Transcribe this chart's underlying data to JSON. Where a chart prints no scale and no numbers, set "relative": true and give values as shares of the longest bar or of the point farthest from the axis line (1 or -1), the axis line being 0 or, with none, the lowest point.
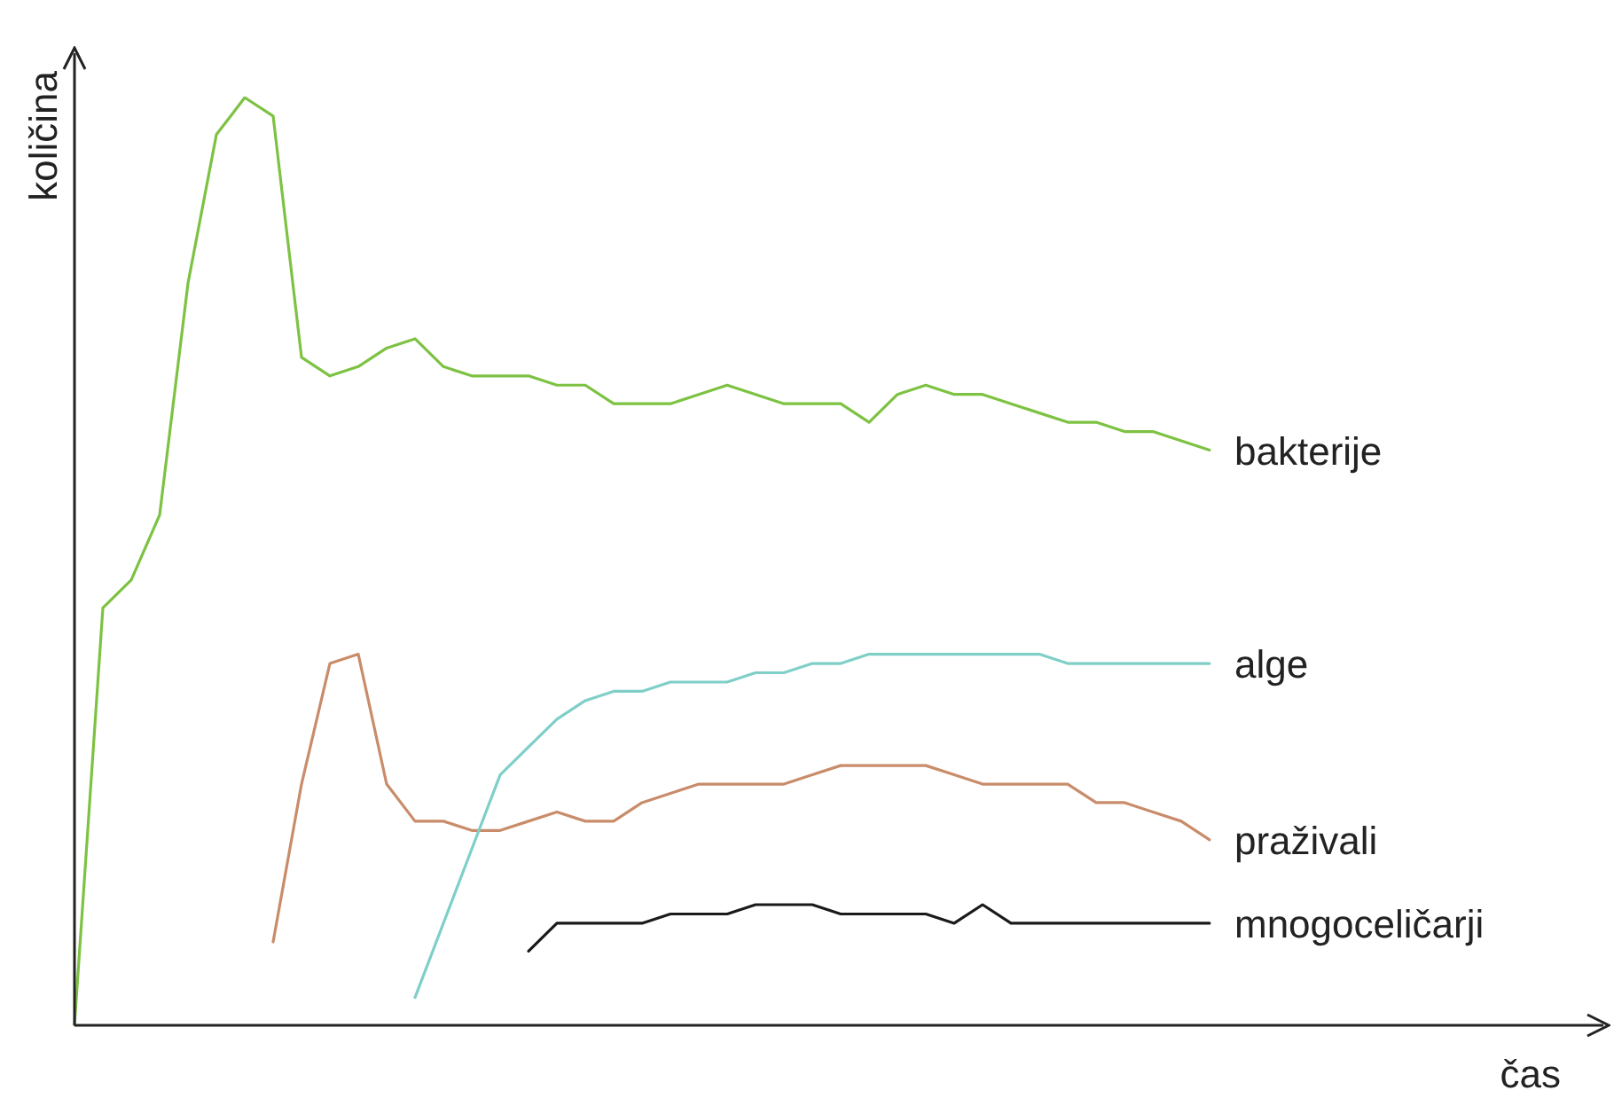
{
  "chart_data": {
    "type": "line",
    "relative": true,
    "annotations": [
      "čas"
    ],
    "ylabel": "količina",
    "legend": false,
    "grid": false,
    "marker": "none",
    "line_style": "solid",
    "categories": [
      null,
      null,
      null,
      null,
      null,
      null,
      null,
      null,
      null,
      null,
      null,
      null,
      null,
      null,
      null,
      null,
      null,
      null,
      null,
      null,
      null,
      null,
      null,
      null,
      null,
      null,
      null,
      null,
      null,
      null,
      null,
      null,
      null,
      null,
      null,
      null,
      null,
      null,
      null,
      null,
      null
    ],
    "series": [
      {
        "name": "bakterije",
        "color": "#7dc242",
        "values": [
          0,
          0.45,
          0.48,
          0.55,
          0.8,
          0.96,
          1,
          0.98,
          0.72,
          0.7,
          0.71,
          0.73,
          0.74,
          0.71,
          0.7,
          0.7,
          0.7,
          0.69,
          0.69,
          0.67,
          0.67,
          0.67,
          0.68,
          0.69,
          0.68,
          0.67,
          0.67,
          0.67,
          0.65,
          0.68,
          0.69,
          0.68,
          0.68,
          0.67,
          0.66,
          0.65,
          0.65,
          0.64,
          0.64,
          0.63,
          0.62
        ]
      },
      {
        "name": "alge",
        "color": "#7fcfc8",
        "values": [
          null,
          null,
          null,
          null,
          null,
          null,
          null,
          null,
          null,
          null,
          null,
          null,
          0.03,
          0.11,
          0.19,
          0.27,
          0.3,
          0.33,
          0.35,
          0.36,
          0.36,
          0.37,
          0.37,
          0.37,
          0.38,
          0.38,
          0.39,
          0.39,
          0.4,
          0.4,
          0.4,
          0.4,
          0.4,
          0.4,
          0.4,
          0.39,
          0.39,
          0.39,
          0.39,
          0.39,
          0.39
        ]
      },
      {
        "name": "praživali",
        "color": "#c98c6a",
        "values": [
          null,
          null,
          null,
          null,
          null,
          null,
          null,
          0.09,
          0.26,
          0.39,
          0.4,
          0.26,
          0.22,
          0.22,
          0.21,
          0.21,
          0.22,
          0.23,
          0.22,
          0.22,
          0.24,
          0.25,
          0.26,
          0.26,
          0.26,
          0.26,
          0.27,
          0.28,
          0.28,
          0.28,
          0.28,
          0.27,
          0.26,
          0.26,
          0.26,
          0.26,
          0.24,
          0.24,
          0.23,
          0.22,
          0.2
        ]
      },
      {
        "name": "mnogoceličarji",
        "color": "#1a1a1a",
        "values": [
          null,
          null,
          null,
          null,
          null,
          null,
          null,
          null,
          null,
          null,
          null,
          null,
          null,
          null,
          null,
          null,
          0.08,
          0.11,
          0.11,
          0.11,
          0.11,
          0.12,
          0.12,
          0.12,
          0.13,
          0.13,
          0.13,
          0.12,
          0.12,
          0.12,
          0.12,
          0.11,
          0.13,
          0.11,
          0.11,
          0.11,
          0.11,
          0.11,
          0.11,
          0.11,
          0.11
        ]
      }
    ]
  }
}
